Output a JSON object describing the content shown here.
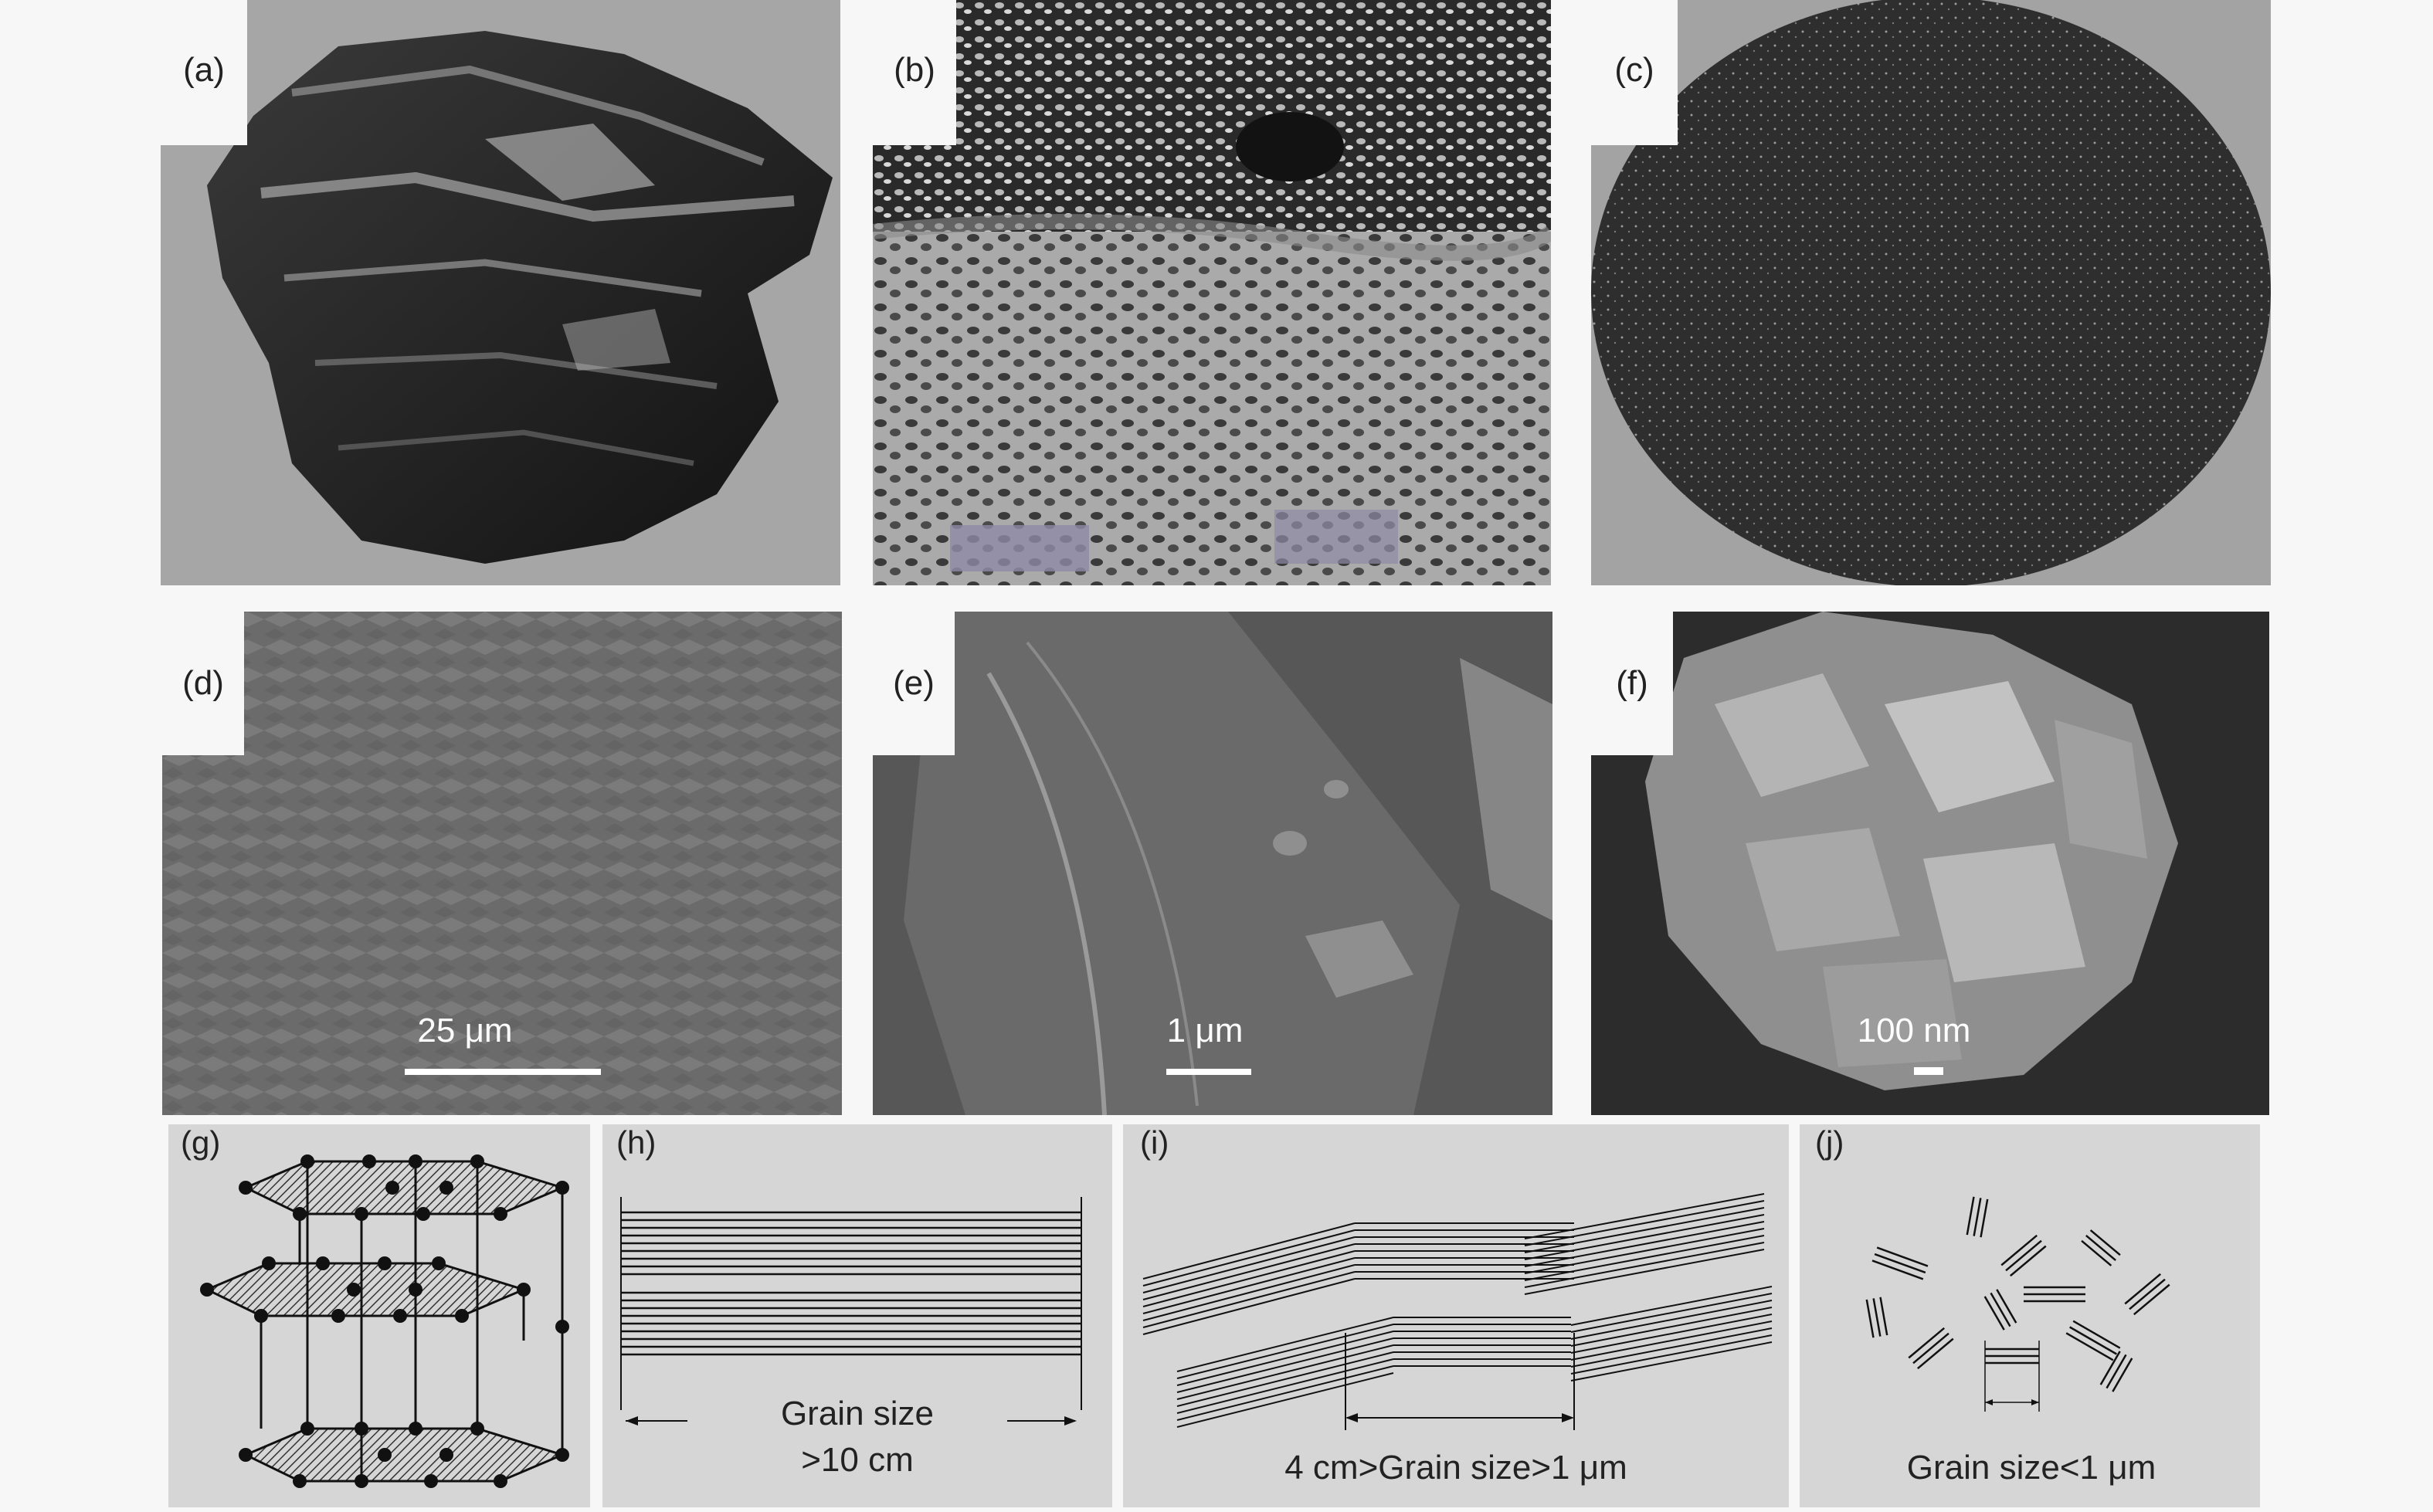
{
  "panels": {
    "a": {
      "label": "(a)"
    },
    "b": {
      "label": "(b)"
    },
    "c": {
      "label": "(c)"
    },
    "d": {
      "label": "(d)",
      "scale": "25 μm"
    },
    "e": {
      "label": "(e)",
      "scale": "1 μm"
    },
    "f": {
      "label": "(f)",
      "scale": "100 nm"
    },
    "g": {
      "label": "(g)"
    },
    "h": {
      "label": "(h)",
      "caption_line1": "Grain size",
      "caption_line2": ">10 cm"
    },
    "i": {
      "label": "(i)",
      "caption": "4 cm>Grain size>1 μm"
    },
    "j": {
      "label": "(j)",
      "caption": "Grain size<1 μm"
    }
  },
  "colors": {
    "page_bg": "#f7f7f7",
    "photo_gray": "#a4a4a4",
    "schematic_bg": "#d6d6d6",
    "sem_dark": "#2f2f2f"
  }
}
